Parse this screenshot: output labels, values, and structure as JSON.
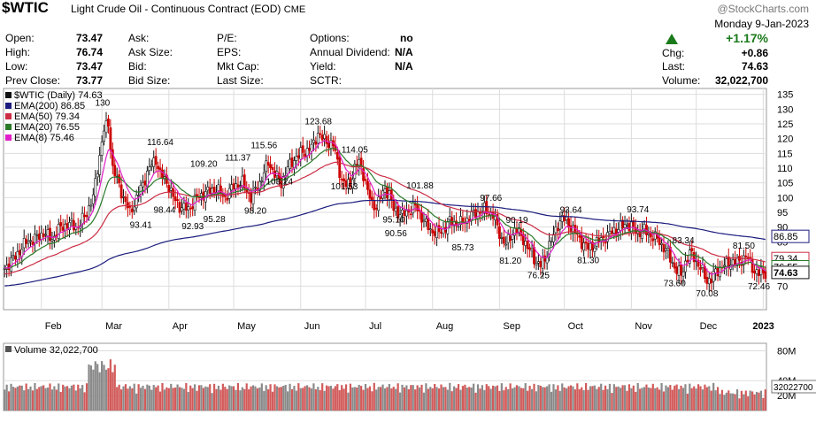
{
  "header": {
    "symbol": "$WTIC",
    "name": "Light Crude Oil - Continuous Contract (EOD)",
    "exchange": "CME",
    "watermark": "@StockCharts.com",
    "date": "Monday  9-Jan-2023"
  },
  "quote": {
    "open_label": "Open:",
    "open": "73.47",
    "high_label": "High:",
    "high": "76.74",
    "low_label": "Low:",
    "low": "73.47",
    "prev_label": "Prev Close:",
    "prev": "73.77",
    "ask_label": "Ask:",
    "ask_size_label": "Ask Size:",
    "bid_label": "Bid:",
    "bid_size_label": "Bid Size:",
    "pe_label": "P/E:",
    "eps_label": "EPS:",
    "mktcap_label": "Mkt Cap:",
    "lastsize_label": "Last Size:",
    "options_label": "Options:",
    "options": "no",
    "dividend_label": "Annual Dividend:",
    "dividend": "N/A",
    "yield_label": "Yield:",
    "yield": "N/A",
    "sctr_label": "SCTR:",
    "pct_change": "+1.17%",
    "chg_label": "Chg:",
    "chg": "+0.86",
    "last_label": "Last:",
    "last": "74.63",
    "volume_label": "Volume:",
    "volume": "32,022,700"
  },
  "colors": {
    "up": "#111111",
    "down": "#cc0000",
    "ema200": "#1c1c7e",
    "ema50": "#cc2d44",
    "ema20": "#2a7a2a",
    "ema8": "#e020c8",
    "grid": "#dddddd",
    "vol_up": "#8a8a8a",
    "vol_down": "#d25a5a",
    "accent": "#1a7a1a"
  },
  "chart_data": {
    "type": "candlestick",
    "legend": [
      {
        "label": "$WTIC (Daily) 74.63",
        "color_key": "up"
      },
      {
        "label": "EMA(200) 86.85",
        "color_key": "ema200"
      },
      {
        "label": "EMA(50) 79.34",
        "color_key": "ema50"
      },
      {
        "label": "EMA(20) 76.55",
        "color_key": "ema20"
      },
      {
        "label": "EMA(8) 75.46",
        "color_key": "ema8"
      }
    ],
    "ylim": [
      62,
      137
    ],
    "yticks": [
      70,
      75,
      80,
      85,
      90,
      95,
      100,
      105,
      110,
      115,
      120,
      125,
      130,
      135
    ],
    "x_months": [
      {
        "label": "Feb",
        "day": 17
      },
      {
        "label": "Mar",
        "day": 45
      },
      {
        "label": "Apr",
        "day": 76
      },
      {
        "label": "May",
        "day": 106
      },
      {
        "label": "Jun",
        "day": 137
      },
      {
        "label": "Jul",
        "day": 167
      },
      {
        "label": "Aug",
        "day": 198
      },
      {
        "label": "Sep",
        "day": 229
      },
      {
        "label": "Oct",
        "day": 259
      },
      {
        "label": "Nov",
        "day": 290
      },
      {
        "label": "Dec",
        "day": 320
      },
      {
        "label": "2023",
        "day": 351
      }
    ],
    "anchors": [
      [
        0,
        76
      ],
      [
        5,
        80
      ],
      [
        10,
        85
      ],
      [
        14,
        86
      ],
      [
        18,
        88
      ],
      [
        22,
        86
      ],
      [
        26,
        90
      ],
      [
        30,
        91
      ],
      [
        34,
        90
      ],
      [
        38,
        95
      ],
      [
        41,
        100
      ],
      [
        43,
        110
      ],
      [
        46,
        123
      ],
      [
        48,
        125
      ],
      [
        50,
        110
      ],
      [
        52,
        106
      ],
      [
        55,
        100
      ],
      [
        58,
        95
      ],
      [
        60,
        98
      ],
      [
        63,
        103
      ],
      [
        67,
        110
      ],
      [
        70,
        113
      ],
      [
        72,
        108
      ],
      [
        76,
        104
      ],
      [
        78,
        100
      ],
      [
        81,
        97
      ],
      [
        85,
        96
      ],
      [
        89,
        100
      ],
      [
        94,
        102
      ],
      [
        98,
        103
      ],
      [
        102,
        100
      ],
      [
        106,
        104
      ],
      [
        110,
        105
      ],
      [
        114,
        100
      ],
      [
        118,
        105
      ],
      [
        122,
        112
      ],
      [
        125,
        108
      ],
      [
        128,
        105
      ],
      [
        131,
        110
      ],
      [
        134,
        113
      ],
      [
        137,
        115
      ],
      [
        140,
        116
      ],
      [
        143,
        118
      ],
      [
        145,
        122
      ],
      [
        147,
        120
      ],
      [
        149,
        119
      ],
      [
        152,
        118
      ],
      [
        154,
        112
      ],
      [
        156,
        106
      ],
      [
        158,
        104
      ],
      [
        160,
        105
      ],
      [
        162,
        110
      ],
      [
        164,
        112
      ],
      [
        166,
        108
      ],
      [
        168,
        102
      ],
      [
        170,
        98
      ],
      [
        172,
        97
      ],
      [
        174,
        100
      ],
      [
        176,
        103
      ],
      [
        178,
        101
      ],
      [
        180,
        96
      ],
      [
        182,
        95
      ],
      [
        184,
        94
      ],
      [
        186,
        95
      ],
      [
        188,
        96
      ],
      [
        190,
        97
      ],
      [
        192,
        95
      ],
      [
        194,
        92
      ],
      [
        197,
        89
      ],
      [
        200,
        88
      ],
      [
        203,
        89
      ],
      [
        206,
        92
      ],
      [
        210,
        91
      ],
      [
        213,
        92
      ],
      [
        216,
        94
      ],
      [
        219,
        95
      ],
      [
        222,
        96
      ],
      [
        224,
        95
      ],
      [
        226,
        94
      ],
      [
        228,
        90
      ],
      [
        230,
        86
      ],
      [
        232,
        84
      ],
      [
        234,
        87
      ],
      [
        236,
        89
      ],
      [
        238,
        88
      ],
      [
        240,
        86
      ],
      [
        242,
        83
      ],
      [
        244,
        81
      ],
      [
        246,
        78
      ],
      [
        248,
        77
      ],
      [
        250,
        79
      ],
      [
        252,
        84
      ],
      [
        254,
        87
      ],
      [
        256,
        91
      ],
      [
        258,
        93
      ],
      [
        260,
        92
      ],
      [
        262,
        90
      ],
      [
        264,
        88
      ],
      [
        266,
        86
      ],
      [
        268,
        84
      ],
      [
        270,
        83
      ],
      [
        273,
        84
      ],
      [
        276,
        86
      ],
      [
        279,
        87
      ],
      [
        282,
        89
      ],
      [
        285,
        90
      ],
      [
        288,
        91
      ],
      [
        290,
        90
      ],
      [
        293,
        88
      ],
      [
        296,
        89
      ],
      [
        299,
        87
      ],
      [
        302,
        86
      ],
      [
        305,
        83
      ],
      [
        307,
        81
      ],
      [
        309,
        78
      ],
      [
        311,
        75
      ],
      [
        313,
        74
      ],
      [
        315,
        78
      ],
      [
        317,
        81
      ],
      [
        319,
        80
      ],
      [
        321,
        77
      ],
      [
        323,
        75
      ],
      [
        325,
        72
      ],
      [
        327,
        72
      ],
      [
        329,
        75
      ],
      [
        331,
        76
      ],
      [
        333,
        77
      ],
      [
        336,
        78
      ],
      [
        339,
        78
      ],
      [
        341,
        79
      ],
      [
        343,
        80
      ],
      [
        345,
        78
      ],
      [
        347,
        75
      ],
      [
        349,
        74
      ],
      [
        350,
        75
      ],
      [
        352,
        74.6
      ]
    ],
    "annotations": [
      {
        "text": "130",
        "day": 46,
        "value": 130
      },
      {
        "text": "116.64",
        "day": 70,
        "value": 116.64
      },
      {
        "text": "109.20",
        "day": 90,
        "value": 109.2
      },
      {
        "text": "111.37",
        "day": 106,
        "value": 111.37
      },
      {
        "text": "115.56",
        "day": 118,
        "value": 115.56
      },
      {
        "text": "123.68",
        "day": 143,
        "value": 123.68
      },
      {
        "text": "114.05",
        "day": 160,
        "value": 114.05
      },
      {
        "text": "101.88",
        "day": 190,
        "value": 101.88
      },
      {
        "text": "97.66",
        "day": 224,
        "value": 97.66
      },
      {
        "text": "93.64",
        "day": 261,
        "value": 93.64
      },
      {
        "text": "93.74",
        "day": 292,
        "value": 93.74
      },
      {
        "text": "90.19",
        "day": 236,
        "value": 90.19
      },
      {
        "text": "83.34",
        "day": 313,
        "value": 83.34
      },
      {
        "text": "81.50",
        "day": 341,
        "value": 81.5
      },
      {
        "text": "98.44",
        "day": 73,
        "value": 98.44
      },
      {
        "text": "93.41",
        "day": 62,
        "value": 93.41
      },
      {
        "text": "92.93",
        "day": 86,
        "value": 92.93
      },
      {
        "text": "95.28",
        "day": 96,
        "value": 95.28
      },
      {
        "text": "98.20",
        "day": 115,
        "value": 98.2
      },
      {
        "text": "103.24",
        "day": 125,
        "value": 103.24
      },
      {
        "text": "101.53",
        "day": 155,
        "value": 101.53
      },
      {
        "text": "95.10",
        "day": 179,
        "value": 95.1
      },
      {
        "text": "90.56",
        "day": 180,
        "value": 90.56
      },
      {
        "text": "85.73",
        "day": 211,
        "value": 85.73
      },
      {
        "text": "81.20",
        "day": 233,
        "value": 81.2
      },
      {
        "text": "76.25",
        "day": 246,
        "value": 76.25
      },
      {
        "text": "81.30",
        "day": 269,
        "value": 81.3
      },
      {
        "text": "73.60",
        "day": 309,
        "value": 73.6
      },
      {
        "text": "70.08",
        "day": 324,
        "value": 70.08
      },
      {
        "text": "72.46",
        "day": 348,
        "value": 72.46
      }
    ],
    "right_labels": [
      {
        "text": "86.85",
        "value": 86.85,
        "color_key": "ema200"
      },
      {
        "text": "79.34",
        "value": 79.34,
        "color_key": "ema50"
      },
      {
        "text": "76.55",
        "value": 76.55,
        "color_key": "ema20"
      },
      {
        "text": "74.63",
        "value": 74.63,
        "color_key": "up"
      }
    ],
    "volume": {
      "legend": "Volume 32,022,700",
      "ylim": [
        0,
        90
      ],
      "yticks": [
        {
          "text": "80M",
          "value": 80
        },
        {
          "text": "40M",
          "value": 40
        },
        {
          "text": "20M",
          "value": 20
        }
      ],
      "last_label": "32022700",
      "last_value": 32.0
    }
  }
}
